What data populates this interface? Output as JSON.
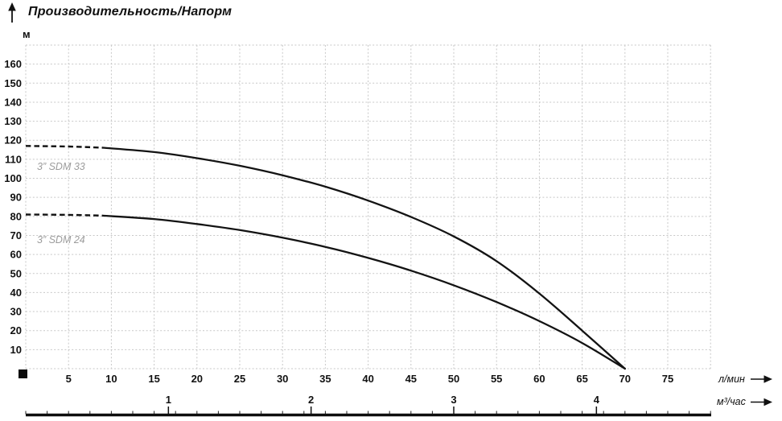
{
  "chart_data": {
    "type": "line",
    "title": "Производительность/Напорм",
    "ylabel": "м",
    "xlabel": "л/мин",
    "xlabel_secondary": "м³/час",
    "x_range": [
      0,
      80
    ],
    "y_range": [
      0,
      170
    ],
    "x_grid_step": 5,
    "y_grid_step": 10,
    "x_ticks": [
      5,
      10,
      15,
      20,
      25,
      30,
      35,
      40,
      45,
      50,
      55,
      60,
      65,
      70,
      75
    ],
    "y_ticks": [
      10,
      20,
      30,
      40,
      50,
      60,
      70,
      80,
      90,
      100,
      110,
      120,
      130,
      140,
      150,
      160
    ],
    "x_secondary_ticks": [
      1,
      2,
      3,
      4
    ],
    "x_secondary_factor": 16.6667,
    "grid": {
      "style": "dashed",
      "color": "#c7c7c7"
    },
    "legend_position": "on-curve",
    "colors": {
      "curve": "#131313",
      "text": "#111111",
      "series_label": "#9c9c9c"
    },
    "series": [
      {
        "name": "3” SDM 33",
        "dash_until_x": 9,
        "points": [
          [
            0,
            117
          ],
          [
            5,
            116.7
          ],
          [
            9,
            116.1
          ],
          [
            15,
            113.8
          ],
          [
            20,
            110.6
          ],
          [
            25,
            106.6
          ],
          [
            30,
            101.6
          ],
          [
            35,
            95.6
          ],
          [
            40,
            88.3
          ],
          [
            45,
            79.7
          ],
          [
            50,
            69.5
          ],
          [
            55,
            56.5
          ],
          [
            60,
            39.5
          ],
          [
            65,
            20
          ],
          [
            70,
            0
          ]
        ]
      },
      {
        "name": "3” SDM 24",
        "dash_until_x": 9,
        "points": [
          [
            0,
            81
          ],
          [
            5,
            80.8
          ],
          [
            9,
            80.4
          ],
          [
            15,
            78.6
          ],
          [
            20,
            76
          ],
          [
            25,
            72.8
          ],
          [
            30,
            68.8
          ],
          [
            35,
            64
          ],
          [
            40,
            58.2
          ],
          [
            45,
            51.5
          ],
          [
            50,
            43.8
          ],
          [
            55,
            35
          ],
          [
            60,
            25
          ],
          [
            65,
            13.5
          ],
          [
            70,
            0
          ]
        ]
      }
    ]
  }
}
